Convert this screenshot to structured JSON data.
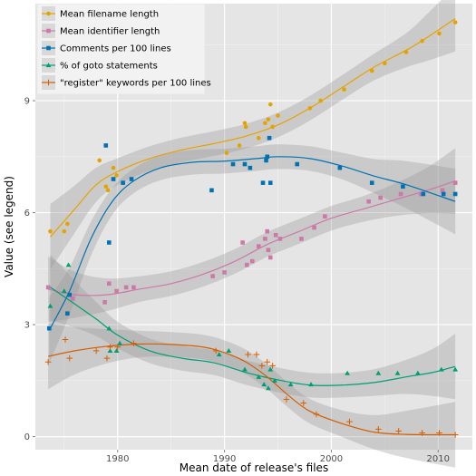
{
  "chart_data": {
    "type": "scatter",
    "xlabel": "Mean date of release's files",
    "ylabel": "Value (see legend)",
    "xlim": [
      1972.3,
      2013.2
    ],
    "ylim": [
      -0.35,
      11.6
    ],
    "xticks": [
      1980,
      1990,
      2000,
      2010
    ],
    "yticks": [
      0,
      3,
      6,
      9
    ],
    "grid": true,
    "legend_position": "top-left",
    "smoothing": "loess fit with grey confidence band",
    "series": [
      {
        "name": "Mean filename length",
        "color": "#e5a300",
        "marker": "circle",
        "points": [
          [
            1973.7,
            5.5
          ],
          [
            1975,
            5.5
          ],
          [
            1975.3,
            5.7
          ],
          [
            1978.3,
            7.4
          ],
          [
            1978.9,
            6.7
          ],
          [
            1979.1,
            6.6
          ],
          [
            1979.6,
            7.2
          ],
          [
            1979.9,
            7.0
          ],
          [
            1990.2,
            7.6
          ],
          [
            1991.4,
            7.8
          ],
          [
            1991.9,
            8.4
          ],
          [
            1992.0,
            8.3
          ],
          [
            1993.2,
            8.0
          ],
          [
            1993.8,
            8.4
          ],
          [
            1994.1,
            8.5
          ],
          [
            1994.3,
            8.9
          ],
          [
            1994.5,
            8.3
          ],
          [
            1995.0,
            8.6
          ],
          [
            1998.0,
            8.8
          ],
          [
            1999.0,
            9.0
          ],
          [
            2001.2,
            9.3
          ],
          [
            2003.8,
            9.8
          ],
          [
            2005.0,
            10.0
          ],
          [
            2007.0,
            10.3
          ],
          [
            2008.5,
            10.6
          ],
          [
            2010.1,
            10.8
          ],
          [
            2011.6,
            11.1
          ]
        ],
        "fit": [
          [
            1973.7,
            5.35
          ],
          [
            1976,
            6.1
          ],
          [
            1978,
            6.75
          ],
          [
            1980,
            7.1
          ],
          [
            1983,
            7.45
          ],
          [
            1986,
            7.68
          ],
          [
            1989,
            7.85
          ],
          [
            1992,
            8.05
          ],
          [
            1995,
            8.35
          ],
          [
            1998,
            8.8
          ],
          [
            2001,
            9.35
          ],
          [
            2004,
            9.9
          ],
          [
            2007,
            10.35
          ],
          [
            2009,
            10.7
          ],
          [
            2011.6,
            11.2
          ]
        ]
      },
      {
        "name": "Mean identifier length",
        "color": "#cc79a7",
        "marker": "square",
        "points": [
          [
            1973.5,
            4.0
          ],
          [
            1975.8,
            3.7
          ],
          [
            1978.8,
            3.6
          ],
          [
            1979.2,
            4.1
          ],
          [
            1979.9,
            3.9
          ],
          [
            1980.8,
            4.0
          ],
          [
            1981.5,
            4.0
          ],
          [
            1988.9,
            4.3
          ],
          [
            1990.0,
            4.4
          ],
          [
            1991.7,
            5.2
          ],
          [
            1992.1,
            4.6
          ],
          [
            1992.6,
            4.7
          ],
          [
            1993.2,
            5.1
          ],
          [
            1993.8,
            5.3
          ],
          [
            1994.0,
            5.5
          ],
          [
            1994.1,
            5.0
          ],
          [
            1994.3,
            4.8
          ],
          [
            1994.8,
            5.4
          ],
          [
            1995.2,
            5.3
          ],
          [
            1997.2,
            5.3
          ],
          [
            1998.4,
            5.6
          ],
          [
            1999.4,
            5.9
          ],
          [
            2003.5,
            6.3
          ],
          [
            2004.6,
            6.4
          ],
          [
            2006.5,
            6.5
          ],
          [
            2008.4,
            6.5
          ],
          [
            2010.4,
            6.6
          ],
          [
            2011.6,
            6.8
          ]
        ],
        "fit": [
          [
            1973.5,
            3.95
          ],
          [
            1976,
            3.8
          ],
          [
            1979,
            3.8
          ],
          [
            1982,
            3.95
          ],
          [
            1985,
            4.1
          ],
          [
            1988,
            4.35
          ],
          [
            1991,
            4.7
          ],
          [
            1994,
            5.15
          ],
          [
            1997,
            5.5
          ],
          [
            2000,
            5.85
          ],
          [
            2003,
            6.1
          ],
          [
            2006,
            6.35
          ],
          [
            2009,
            6.6
          ],
          [
            2011.6,
            6.85
          ]
        ]
      },
      {
        "name": "Comments per 100 lines",
        "color": "#0072b2",
        "marker": "square",
        "points": [
          [
            1973.6,
            2.9
          ],
          [
            1975.3,
            3.3
          ],
          [
            1975.5,
            3.8
          ],
          [
            1978.9,
            7.8
          ],
          [
            1979.2,
            5.2
          ],
          [
            1979.6,
            6.9
          ],
          [
            1980.5,
            6.8
          ],
          [
            1981.3,
            6.9
          ],
          [
            1988.8,
            6.6
          ],
          [
            1990.8,
            7.3
          ],
          [
            1991.9,
            7.3
          ],
          [
            1992.4,
            7.2
          ],
          [
            1993.6,
            6.8
          ],
          [
            1993.9,
            7.4
          ],
          [
            1994.0,
            7.5
          ],
          [
            1994.2,
            8.0
          ],
          [
            1994.3,
            6.8
          ],
          [
            1996.8,
            7.3
          ],
          [
            2000.8,
            7.2
          ],
          [
            2003.8,
            6.8
          ],
          [
            2006.7,
            6.7
          ],
          [
            2008.6,
            6.5
          ],
          [
            2010.5,
            6.5
          ],
          [
            2011.6,
            6.5
          ]
        ],
        "fit": [
          [
            1973.6,
            2.85
          ],
          [
            1975.5,
            3.9
          ],
          [
            1977.5,
            5.3
          ],
          [
            1979.5,
            6.3
          ],
          [
            1981.5,
            6.85
          ],
          [
            1984,
            7.2
          ],
          [
            1987,
            7.35
          ],
          [
            1990,
            7.38
          ],
          [
            1993,
            7.45
          ],
          [
            1995,
            7.5
          ],
          [
            1998,
            7.45
          ],
          [
            2001,
            7.25
          ],
          [
            2004,
            6.98
          ],
          [
            2007,
            6.75
          ],
          [
            2011.6,
            6.3
          ]
        ]
      },
      {
        "name": "% of goto statements",
        "color": "#009e73",
        "marker": "triangle",
        "points": [
          [
            1973.7,
            3.5
          ],
          [
            1975.0,
            3.9
          ],
          [
            1975.4,
            4.6
          ],
          [
            1979.2,
            2.9
          ],
          [
            1979.3,
            2.3
          ],
          [
            1979.9,
            2.3
          ],
          [
            1980.2,
            2.5
          ],
          [
            1989.5,
            2.2
          ],
          [
            1990.4,
            2.3
          ],
          [
            1991.9,
            1.8
          ],
          [
            1993.2,
            1.6
          ],
          [
            1993.7,
            1.4
          ],
          [
            1994.1,
            1.3
          ],
          [
            1994.3,
            1.8
          ],
          [
            1994.7,
            1.5
          ],
          [
            1996.2,
            1.4
          ],
          [
            1998.1,
            1.4
          ],
          [
            2001.5,
            1.7
          ],
          [
            2004.4,
            1.7
          ],
          [
            2006.2,
            1.7
          ],
          [
            2008.1,
            1.7
          ],
          [
            2010.3,
            1.8
          ],
          [
            2011.6,
            1.8
          ]
        ],
        "fit": [
          [
            1973.7,
            4.0
          ],
          [
            1976,
            3.55
          ],
          [
            1978,
            3.15
          ],
          [
            1980,
            2.72
          ],
          [
            1983,
            2.3
          ],
          [
            1986,
            2.1
          ],
          [
            1989,
            1.98
          ],
          [
            1992,
            1.72
          ],
          [
            1995,
            1.52
          ],
          [
            1998,
            1.38
          ],
          [
            2001,
            1.38
          ],
          [
            2004,
            1.45
          ],
          [
            2007,
            1.6
          ],
          [
            2009.5,
            1.72
          ],
          [
            2011.6,
            1.88
          ]
        ]
      },
      {
        "name": "\"register\" keywords per 100 lines",
        "color": "#d55e00",
        "marker": "cross",
        "points": [
          [
            1973.5,
            2.0
          ],
          [
            1975.1,
            2.6
          ],
          [
            1975.5,
            2.1
          ],
          [
            1978.0,
            2.3
          ],
          [
            1979.0,
            2.1
          ],
          [
            1979.3,
            2.4
          ],
          [
            1980.0,
            2.4
          ],
          [
            1981.5,
            2.5
          ],
          [
            1989.2,
            2.3
          ],
          [
            1992.2,
            2.2
          ],
          [
            1993.0,
            2.2
          ],
          [
            1993.5,
            1.9
          ],
          [
            1994.0,
            2.0
          ],
          [
            1994.5,
            1.9
          ],
          [
            1995.8,
            1.0
          ],
          [
            1997.4,
            0.9
          ],
          [
            1998.6,
            0.6
          ],
          [
            2001.7,
            0.4
          ],
          [
            2004.4,
            0.2
          ],
          [
            2006.3,
            0.15
          ],
          [
            2008.5,
            0.1
          ],
          [
            2010.1,
            0.1
          ],
          [
            2011.6,
            0.05
          ]
        ],
        "fit": [
          [
            1973.5,
            2.15
          ],
          [
            1976,
            2.3
          ],
          [
            1979,
            2.42
          ],
          [
            1982,
            2.48
          ],
          [
            1985,
            2.47
          ],
          [
            1988,
            2.4
          ],
          [
            1990,
            2.25
          ],
          [
            1992,
            2.0
          ],
          [
            1994,
            1.6
          ],
          [
            1996,
            1.1
          ],
          [
            1998,
            0.68
          ],
          [
            2001,
            0.35
          ],
          [
            2004,
            0.12
          ],
          [
            2007,
            0.06
          ],
          [
            2011.6,
            0.05
          ]
        ]
      }
    ]
  }
}
